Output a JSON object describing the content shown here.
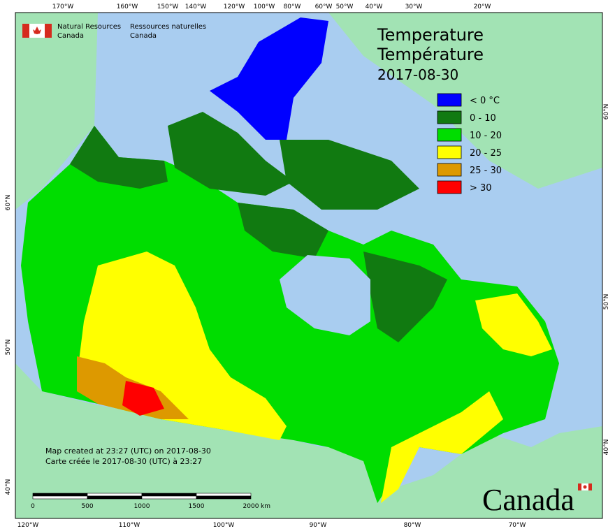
{
  "header": {
    "agency_en": [
      "Natural Resources",
      "Canada"
    ],
    "agency_fr": [
      "Ressources naturelles",
      "Canada"
    ]
  },
  "title": {
    "en": "Temperature",
    "fr": "Température",
    "date": "2017-08-30"
  },
  "legend": [
    {
      "label": "< 0 °C",
      "color": "#0000ff"
    },
    {
      "label": "0 - 10",
      "color": "#117a11"
    },
    {
      "label": "10 - 20",
      "color": "#00dd00"
    },
    {
      "label": "20 - 25",
      "color": "#ffff00"
    },
    {
      "label": "25 - 30",
      "color": "#dd9900"
    },
    {
      "label": "> 30",
      "color": "#ff0000"
    }
  ],
  "top_labels": [
    "170°W",
    "160°W",
    "150°W",
    "140°W",
    "120°W",
    "100°W",
    "80°W",
    "60°W",
    "50°W",
    "40°W",
    "30°W",
    "20°W"
  ],
  "bottom_labels": [
    "120°W",
    "110°W",
    "100°W",
    "90°W",
    "80°W",
    "70°W"
  ],
  "left_labels": [
    "60°N",
    "50°N",
    "40°N"
  ],
  "right_labels": [
    "60°N",
    "50°N",
    "40°N"
  ],
  "notes": [
    "Map created at 23:27 (UTC) on 2017-08-30",
    "Carte créée le 2017-08-30 (UTC) à 23:27"
  ],
  "scale_bar": {
    "labels": [
      "0",
      "500",
      "1000",
      "1500",
      "2000"
    ],
    "unit": "km"
  },
  "wordmark": "Canada"
}
